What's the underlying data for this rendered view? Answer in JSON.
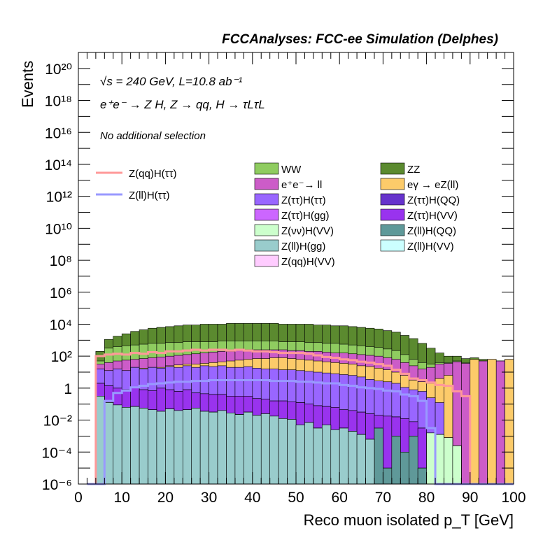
{
  "chart_data": {
    "type": "area",
    "title": "FCCAnalyses: FCC-ee Simulation (Delphes)",
    "xlabel": "Reco muon isolated p_T [GeV]",
    "ylabel": "Events",
    "xlim": [
      0,
      100
    ],
    "ylim": [
      1e-06,
      1e+21
    ],
    "yscale": "log",
    "grid": false,
    "legend_placement": "center",
    "annotations": {
      "energy": "√s = 240 GeV, L=10.8 ab⁻¹",
      "process": "e⁺e⁻ → Z H, Z → qq, H → τLτL",
      "selection": "No additional selection"
    },
    "x_ticks": [
      "0",
      "10",
      "20",
      "30",
      "40",
      "50",
      "60",
      "70",
      "80",
      "90",
      "100"
    ],
    "y_ticks": [
      {
        "exp": -6,
        "label": "10⁻⁶"
      },
      {
        "exp": -4,
        "label": "10⁻⁴"
      },
      {
        "exp": -2,
        "label": "10⁻²"
      },
      {
        "exp": 0,
        "label": "1"
      },
      {
        "exp": 2,
        "label": "10²"
      },
      {
        "exp": 4,
        "label": "10⁴"
      },
      {
        "exp": 6,
        "label": "10⁶"
      },
      {
        "exp": 8,
        "label": "10⁸"
      },
      {
        "exp": 10,
        "label": "10¹⁰"
      },
      {
        "exp": 12,
        "label": "10¹²"
      },
      {
        "exp": 14,
        "label": "10¹⁴"
      },
      {
        "exp": 16,
        "label": "10¹⁶"
      },
      {
        "exp": 18,
        "label": "10¹⁸"
      },
      {
        "exp": 20,
        "label": "10²⁰"
      }
    ],
    "bin_edges": [
      2,
      4,
      6,
      8,
      10,
      12,
      14,
      16,
      18,
      20,
      22,
      24,
      26,
      28,
      30,
      32,
      34,
      36,
      38,
      40,
      42,
      44,
      46,
      48,
      50,
      52,
      54,
      56,
      58,
      60,
      62,
      64,
      66,
      68,
      70,
      72,
      74,
      76,
      78,
      80,
      82,
      84,
      86,
      88,
      90,
      92,
      94,
      96,
      98,
      100
    ],
    "stack_order": [
      "Z(qq)H(VV)",
      "Z(ll)H(gg)",
      "Z(ll)H(VV)",
      "Z(ll)H(QQ)",
      "Z(νν)H(VV)",
      "Z(ττ)H(VV)",
      "Z(ττ)H(gg)",
      "Z(ττ)H(QQ)",
      "Z(ττ)H(ττ)",
      "eγ → eZ(ll)",
      "e⁺e⁻→ ll",
      "WW",
      "ZZ"
    ],
    "stack_cumulative_log10": {
      "Z(qq)H(VV)": [
        -6,
        -6,
        -6,
        -6,
        -6,
        -6,
        -6,
        -6,
        -6,
        -6,
        -6,
        -6,
        -6,
        -6,
        -6,
        -6,
        -6,
        -6,
        -6,
        -6,
        -6,
        -6,
        -6,
        -6,
        -6,
        -6,
        -6,
        -6,
        -6,
        -6,
        -6,
        -6,
        -6,
        -6,
        -6,
        -6,
        -6,
        -6,
        -6,
        -6,
        -6,
        -6,
        -6,
        -6,
        -6,
        -6,
        -6,
        -6,
        -6
      ],
      "Z(ll)H(gg)": [
        -6,
        -0.5,
        -0.9,
        -1.05,
        -1.2,
        -1.15,
        -1.25,
        -1.35,
        -1.45,
        -1.3,
        -1.4,
        -1.35,
        -1.25,
        -1.45,
        -1.5,
        -1.4,
        -1.55,
        -1.65,
        -1.5,
        -1.7,
        -1.6,
        -1.75,
        -1.9,
        -1.95,
        -2.3,
        -2.15,
        -2.5,
        -2.3,
        -2.6,
        -2.5,
        -2.7,
        -2.9,
        -3.2,
        -6,
        -6,
        -6,
        -6,
        -6,
        -6,
        -6,
        -6,
        -6,
        -6,
        -6,
        -6,
        -6,
        -6,
        -6,
        -6
      ],
      "Z(ll)H(VV)": [
        -6,
        -0.5,
        -0.9,
        -1.05,
        -1.2,
        -1.15,
        -1.25,
        -1.35,
        -1.45,
        -1.3,
        -1.4,
        -1.35,
        -1.25,
        -1.45,
        -1.5,
        -1.4,
        -1.55,
        -1.65,
        -1.5,
        -1.7,
        -1.6,
        -1.75,
        -1.9,
        -1.95,
        -2.3,
        -2.15,
        -2.5,
        -2.3,
        -2.6,
        -2.5,
        -2.7,
        -2.9,
        -3.2,
        -6,
        -6,
        -6,
        -6,
        -6,
        -6,
        -6,
        -6,
        -6,
        -6,
        -6,
        -6,
        -6,
        -6,
        -6,
        -6
      ],
      "Z(ll)H(QQ)": [
        -6,
        -0.5,
        -0.9,
        -1.05,
        -1.2,
        -1.15,
        -1.25,
        -1.35,
        -1.45,
        -1.3,
        -1.4,
        -1.35,
        -1.25,
        -1.45,
        -1.5,
        -1.4,
        -1.55,
        -1.65,
        -1.5,
        -1.7,
        -1.6,
        -1.75,
        -1.9,
        -1.95,
        -2.3,
        -2.15,
        -2.5,
        -2.3,
        -2.6,
        -2.5,
        -2.7,
        -2.9,
        -3.2,
        -2.5,
        -5,
        -3,
        -4,
        -3,
        -5,
        -6,
        -6,
        -6,
        -6,
        -6,
        -6,
        -6,
        -6,
        -6,
        -6
      ],
      "Z(νν)H(VV)": [
        -6,
        -0.5,
        -0.9,
        -1.05,
        -1.2,
        -1.15,
        -1.25,
        -1.35,
        -1.45,
        -1.3,
        -1.4,
        -1.35,
        -1.25,
        -1.45,
        -1.5,
        -1.4,
        -1.55,
        -1.65,
        -1.5,
        -1.7,
        -1.6,
        -1.75,
        -1.9,
        -1.95,
        -2.3,
        -2.15,
        -2.5,
        -2.3,
        -2.6,
        -2.5,
        -2.7,
        -2.9,
        -3.2,
        -2.5,
        -5,
        -3,
        -4,
        -3,
        -5,
        -2.8,
        -2.9,
        -3.1,
        -3.6,
        -6,
        -6,
        -6,
        -6,
        -6,
        -6
      ],
      "Z(ττ)H(VV)": [
        -6,
        0.3,
        0.15,
        0,
        -0.1,
        0.05,
        -0.1,
        -0.15,
        0,
        -0.1,
        -0.2,
        -0.1,
        -0.3,
        -0.35,
        -0.4,
        -0.4,
        -0.5,
        -0.5,
        -0.5,
        -0.65,
        -0.7,
        -0.8,
        -0.8,
        -0.85,
        -0.9,
        -1,
        -1.1,
        -1.15,
        -1.2,
        -1.35,
        -1.4,
        -1.5,
        -1.6,
        -1.7,
        -1.75,
        -1.8,
        -1.9,
        -2.1,
        -2.5,
        -2.8,
        -2.9,
        -3.1,
        -3.6,
        -6,
        -6,
        -6,
        -6,
        -6,
        -6
      ],
      "Z(ττ)H(gg)": [
        -6,
        0.3,
        0.15,
        0,
        -0.1,
        0.05,
        -0.1,
        -0.15,
        0,
        -0.1,
        -0.2,
        -0.1,
        -0.3,
        -0.35,
        -0.4,
        -0.4,
        -0.5,
        -0.5,
        -0.5,
        -0.65,
        -0.7,
        -0.8,
        -0.8,
        -0.85,
        -0.9,
        -1,
        -1.1,
        -1.15,
        -1.2,
        -1.35,
        -1.4,
        -1.5,
        -1.6,
        -1.7,
        -1.75,
        -1.8,
        -1.9,
        -2.1,
        -2.5,
        -2.8,
        -2.9,
        -3.1,
        -3.6,
        -6,
        -6,
        -6,
        -6,
        -6,
        -6
      ],
      "Z(ττ)H(QQ)": [
        -6,
        0.3,
        0.15,
        0,
        -0.1,
        0.05,
        -0.1,
        -0.15,
        0,
        -0.1,
        -0.2,
        -0.1,
        -0.3,
        -0.35,
        -0.4,
        -0.4,
        -0.5,
        -0.5,
        -0.5,
        -0.65,
        -0.7,
        -0.8,
        -0.8,
        -0.85,
        -0.9,
        -1,
        -1.1,
        -1.15,
        -1.2,
        -1.35,
        -1.4,
        -1.5,
        -1.6,
        -1.7,
        -1.75,
        -1.8,
        -1.9,
        -2.1,
        -2.5,
        -2.8,
        -2.9,
        -3.1,
        -3.6,
        -6,
        -6,
        -6,
        -6,
        -6,
        -6
      ],
      "Z(ττ)H(ττ)": [
        -6,
        1.2,
        1.1,
        1.2,
        1.1,
        1.3,
        1.2,
        1.3,
        1.25,
        1.35,
        1.3,
        1.4,
        1.3,
        1.4,
        1.35,
        1.4,
        1.3,
        1.3,
        1.35,
        1.25,
        1.2,
        1.2,
        1.15,
        1.15,
        1.1,
        1.05,
        1.0,
        0.95,
        0.9,
        0.85,
        0.8,
        0.7,
        0.55,
        0.45,
        0.4,
        0.3,
        0.05,
        -0.1,
        -0.2,
        -0.6,
        -0.9,
        -6,
        -6,
        -6,
        -6,
        -6,
        -6,
        -6,
        -6
      ],
      "eγ → eZ(ll)": [
        -6,
        1.2,
        1.1,
        1.2,
        1.1,
        1.3,
        1.25,
        1.3,
        1.3,
        1.4,
        1.45,
        1.5,
        1.5,
        1.55,
        1.6,
        1.65,
        1.7,
        1.75,
        1.8,
        1.85,
        1.85,
        1.9,
        1.9,
        1.85,
        1.8,
        1.75,
        1.7,
        1.65,
        1.6,
        1.55,
        1.5,
        1.4,
        1.35,
        1.25,
        1.15,
        1.0,
        0.8,
        0.5,
        0.4,
        0.3,
        0.6,
        0.8,
        -6,
        -6,
        1.8,
        -6,
        1.8,
        -6,
        1.8
      ],
      "e⁺e⁻→ ll": [
        -6,
        1.5,
        1.6,
        1.7,
        1.75,
        1.8,
        1.85,
        1.9,
        1.95,
        2.0,
        2.05,
        2.1,
        2.15,
        2.2,
        2.25,
        2.3,
        2.3,
        2.35,
        2.4,
        2.4,
        2.4,
        2.4,
        2.4,
        2.35,
        2.35,
        2.3,
        2.3,
        2.25,
        2.2,
        2.2,
        2.15,
        2.1,
        2.05,
        2.0,
        1.9,
        1.8,
        1.6,
        1.4,
        1.2,
        1.3,
        1.5,
        1.55,
        1.65,
        1.55,
        1.8,
        1.7,
        1.8,
        1.7,
        1.8
      ],
      "WW": [
        -6,
        1.7,
        2.5,
        2.6,
        2.65,
        2.7,
        2.75,
        2.8,
        2.8,
        2.85,
        2.85,
        2.9,
        2.9,
        2.9,
        2.9,
        2.95,
        2.95,
        2.95,
        2.95,
        2.95,
        2.95,
        2.95,
        2.9,
        2.9,
        2.9,
        2.85,
        2.85,
        2.8,
        2.8,
        2.75,
        2.7,
        2.65,
        2.6,
        2.55,
        2.45,
        2.35,
        2.1,
        1.8,
        1.6,
        1.5,
        1.6,
        1.6,
        1.7,
        1.6,
        1.8,
        1.7,
        1.8,
        1.7,
        1.8
      ],
      "ZZ": [
        -6,
        2.3,
        3.05,
        3.25,
        3.4,
        3.55,
        3.65,
        3.75,
        3.8,
        3.85,
        3.9,
        3.95,
        3.95,
        4.0,
        4.0,
        4.0,
        4.05,
        4.05,
        4.05,
        4.05,
        4.05,
        4.05,
        4.0,
        4.0,
        4.0,
        4.0,
        3.95,
        3.95,
        3.9,
        3.9,
        3.85,
        3.8,
        3.75,
        3.7,
        3.6,
        3.5,
        3.3,
        3.1,
        2.8,
        2.5,
        2.2,
        2.0,
        2.0,
        1.85,
        1.9,
        1.8,
        1.8,
        1.7,
        1.8
      ]
    },
    "signal_lines_log10": {
      "Z(qq)H(ττ)": [
        -6,
        2.0,
        2.1,
        2.15,
        2.1,
        2.2,
        2.15,
        2.25,
        2.2,
        2.3,
        2.3,
        2.35,
        2.4,
        2.35,
        2.4,
        2.4,
        2.35,
        2.4,
        2.35,
        2.3,
        2.3,
        2.25,
        2.2,
        2.2,
        2.2,
        2.15,
        2.05,
        1.95,
        1.9,
        1.8,
        1.75,
        1.65,
        1.6,
        1.5,
        1.4,
        1.15,
        0.9,
        0.6,
        0.5,
        0.35,
        0.2,
        0.15,
        -0.2,
        -0.5,
        -6,
        -6,
        -6,
        -6,
        -6
      ],
      "Z(ll)H(ττ)": [
        -6,
        -6,
        -0.8,
        -0.3,
        -0.15,
        0.05,
        0.15,
        0.25,
        0.3,
        0.35,
        0.4,
        0.4,
        0.45,
        0.45,
        0.5,
        0.5,
        0.5,
        0.5,
        0.5,
        0.5,
        0.5,
        0.45,
        0.45,
        0.45,
        0.4,
        0.4,
        0.35,
        0.3,
        0.3,
        0.2,
        0.15,
        0.05,
        0.0,
        -0.05,
        -0.15,
        -0.2,
        -0.4,
        -0.5,
        -0.8,
        -2.5,
        -6,
        -6,
        -6,
        -6,
        -6,
        -6,
        -6,
        -6,
        -6
      ]
    },
    "colors": {
      "WW": "#8fcc60",
      "ZZ": "#5b8a2f",
      "e⁺e⁻→ ll": "#cc5cc8",
      "eγ → eZ(ll)": "#fccb6a",
      "Z(ττ)H(ττ)": "#9966ff",
      "Z(ττ)H(QQ)": "#6633cc",
      "Z(ττ)H(gg)": "#cc66ff",
      "Z(ττ)H(VV)": "#9933ee",
      "Z(νν)H(VV)": "#ccffcc",
      "Z(ll)H(QQ)": "#5f9999",
      "Z(ll)H(gg)": "#99cccc",
      "Z(ll)H(VV)": "#ccffff",
      "Z(qq)H(VV)": "#ffccff",
      "Z(qq)H(ττ)": "#ff9999",
      "Z(ll)H(ττ)": "#9999ff"
    },
    "legend": {
      "lines": [
        "Z(qq)H(ττ)",
        "Z(ll)H(ττ)"
      ],
      "fills": [
        "WW",
        "ZZ",
        "e⁺e⁻→ ll",
        "eγ → eZ(ll)",
        "Z(ττ)H(ττ)",
        "Z(ττ)H(QQ)",
        "Z(ττ)H(gg)",
        "Z(ττ)H(VV)",
        "Z(νν)H(VV)",
        "Z(ll)H(QQ)",
        "Z(ll)H(gg)",
        "Z(ll)H(VV)",
        "Z(qq)H(VV)"
      ]
    }
  }
}
